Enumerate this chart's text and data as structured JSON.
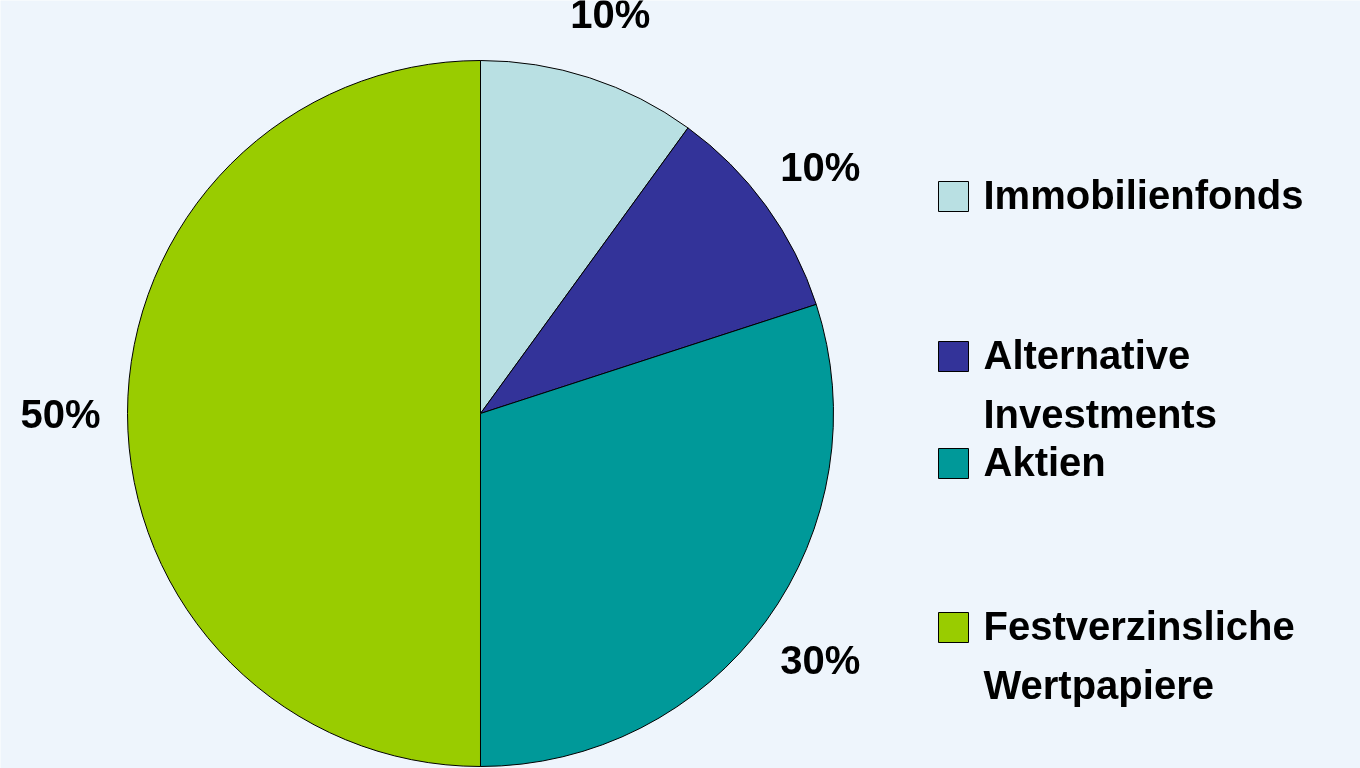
{
  "chart_data": {
    "type": "pie",
    "categories": [
      "Immobilienfonds",
      "Alternative Investments",
      "Aktien",
      "Festverzinsliche Wertpapiere"
    ],
    "values": [
      10,
      10,
      30,
      50
    ],
    "colors": [
      "#b9e0e3",
      "#333399",
      "#009999",
      "#99cc00"
    ],
    "value_labels": [
      "10%",
      "10%",
      "30%",
      "50%"
    ],
    "legend": "right"
  }
}
